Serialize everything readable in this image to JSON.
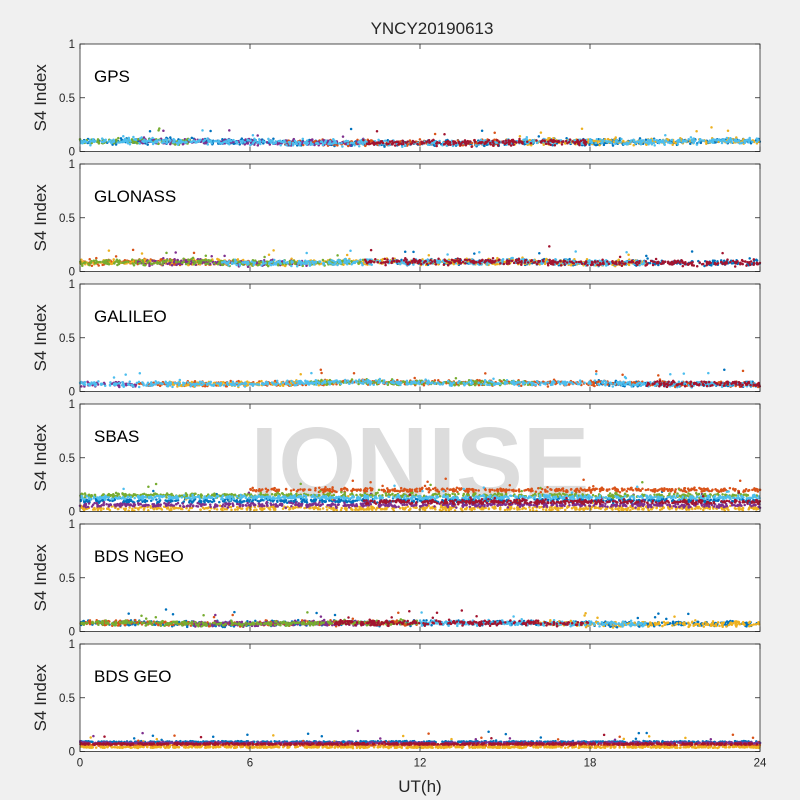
{
  "chart_data": {
    "type": "scatter",
    "title": "YNCY20190613",
    "xlabel": "UT(h)",
    "xlim": [
      0,
      24
    ],
    "xticks": [
      0,
      6,
      12,
      18,
      24
    ],
    "watermark": "IONISE",
    "palette": [
      "#0072BD",
      "#D95319",
      "#EDB120",
      "#7E2F8E",
      "#77AC30",
      "#4DBEEE",
      "#A2142F"
    ],
    "panels": [
      {
        "label": "GPS",
        "ylabel": "S4 Index",
        "ylim": [
          0,
          1
        ],
        "yticks": [
          {
            "v": 0,
            "t": "0"
          },
          {
            "v": 0.5,
            "t": "0.5"
          },
          {
            "v": 1,
            "t": "1"
          }
        ],
        "profile_x": [
          0,
          2,
          4,
          6,
          8,
          10,
          12,
          14,
          16,
          18,
          20,
          22,
          24
        ],
        "profile_y": [
          0.09,
          0.1,
          0.09,
          0.09,
          0.08,
          0.08,
          0.08,
          0.08,
          0.09,
          0.09,
          0.09,
          0.1,
          0.1
        ],
        "spread": 0.04,
        "bands": [
          {
            "color": "#0072BD",
            "from": 0,
            "to": 24
          },
          {
            "color": "#D95319",
            "from": 7,
            "to": 15
          },
          {
            "color": "#EDB120",
            "from": 15,
            "to": 24
          },
          {
            "color": "#7E2F8E",
            "from": 2,
            "to": 10
          },
          {
            "color": "#77AC30",
            "from": 0,
            "to": 4
          },
          {
            "color": "#4DBEEE",
            "from": 0,
            "to": 24
          },
          {
            "color": "#A2142F",
            "from": 10,
            "to": 18
          }
        ]
      },
      {
        "label": "GLONASS",
        "ylabel": "S4 Index",
        "ylim": [
          0,
          1
        ],
        "yticks": [
          {
            "v": 0,
            "t": "0"
          },
          {
            "v": 0.5,
            "t": "0.5"
          },
          {
            "v": 1,
            "t": "1"
          }
        ],
        "profile_x": [
          0,
          2,
          4,
          6,
          8,
          10,
          12,
          14,
          16,
          18,
          20,
          22,
          24
        ],
        "profile_y": [
          0.08,
          0.09,
          0.09,
          0.08,
          0.08,
          0.09,
          0.09,
          0.09,
          0.09,
          0.08,
          0.08,
          0.08,
          0.08
        ],
        "spread": 0.04,
        "bands": [
          {
            "color": "#0072BD",
            "from": 11,
            "to": 24
          },
          {
            "color": "#D95319",
            "from": 0,
            "to": 6
          },
          {
            "color": "#EDB120",
            "from": 0,
            "to": 20
          },
          {
            "color": "#7E2F8E",
            "from": 2,
            "to": 8
          },
          {
            "color": "#77AC30",
            "from": 0,
            "to": 10
          },
          {
            "color": "#4DBEEE",
            "from": 5,
            "to": 20
          },
          {
            "color": "#A2142F",
            "from": 10,
            "to": 24
          }
        ]
      },
      {
        "label": "GALILEO",
        "ylabel": "S4 Index",
        "ylim": [
          0,
          1
        ],
        "yticks": [
          {
            "v": 0,
            "t": "0"
          },
          {
            "v": 0.5,
            "t": "0.5"
          },
          {
            "v": 1,
            "t": "1"
          }
        ],
        "profile_x": [
          0,
          2,
          4,
          6,
          8,
          10,
          12,
          14,
          16,
          18,
          20,
          22,
          24
        ],
        "profile_y": [
          0.07,
          0.07,
          0.07,
          0.07,
          0.08,
          0.09,
          0.08,
          0.08,
          0.08,
          0.08,
          0.07,
          0.07,
          0.07
        ],
        "spread": 0.035,
        "bands": [
          {
            "color": "#0072BD",
            "from": 18,
            "to": 24
          },
          {
            "color": "#D95319",
            "from": 2,
            "to": 24
          },
          {
            "color": "#EDB120",
            "from": 3,
            "to": 9
          },
          {
            "color": "#7E2F8E",
            "from": 0,
            "to": 2
          },
          {
            "color": "#77AC30",
            "from": 8,
            "to": 16
          },
          {
            "color": "#4DBEEE",
            "from": 0,
            "to": 24
          },
          {
            "color": "#A2142F",
            "from": 20,
            "to": 24
          }
        ]
      },
      {
        "label": "SBAS",
        "ylabel": "S4 Index",
        "ylim": [
          0,
          1
        ],
        "yticks": [
          {
            "v": 0,
            "t": "0"
          },
          {
            "v": 0.5,
            "t": "0.5"
          },
          {
            "v": 1,
            "t": "1"
          }
        ],
        "profile_x": [
          0,
          2,
          4,
          6,
          8,
          10,
          12,
          14,
          16,
          18,
          20,
          22,
          24
        ],
        "profile_y": [
          0.13,
          0.13,
          0.13,
          0.14,
          0.14,
          0.15,
          0.14,
          0.14,
          0.14,
          0.13,
          0.13,
          0.13,
          0.13
        ],
        "spread": 0.03,
        "bands": [
          {
            "color": "#0072BD",
            "from": 0,
            "to": 24,
            "base": 0.1
          },
          {
            "color": "#D95319",
            "from": 6,
            "to": 24,
            "base": 0.2
          },
          {
            "color": "#EDB120",
            "from": 0,
            "to": 24,
            "base": 0.03
          },
          {
            "color": "#7E2F8E",
            "from": 0,
            "to": 24,
            "base": 0.06
          },
          {
            "color": "#77AC30",
            "from": 0,
            "to": 24,
            "base": 0.15
          },
          {
            "color": "#4DBEEE",
            "from": 0,
            "to": 24,
            "base": 0.13
          },
          {
            "color": "#A2142F",
            "from": 10,
            "to": 24,
            "base": 0.09
          }
        ]
      },
      {
        "label": "BDS NGEO",
        "ylabel": "S4 Index",
        "ylim": [
          0,
          1
        ],
        "yticks": [
          {
            "v": 0,
            "t": "0"
          },
          {
            "v": 0.5,
            "t": "0.5"
          },
          {
            "v": 1,
            "t": "1"
          }
        ],
        "profile_x": [
          0,
          2,
          4,
          6,
          8,
          10,
          12,
          14,
          16,
          18,
          20,
          22,
          24
        ],
        "profile_y": [
          0.08,
          0.08,
          0.07,
          0.07,
          0.08,
          0.08,
          0.08,
          0.08,
          0.08,
          0.07,
          0.07,
          0.07,
          0.07
        ],
        "spread": 0.035,
        "bands": [
          {
            "color": "#0072BD",
            "from": 0,
            "to": 24
          },
          {
            "color": "#D95319",
            "from": 0,
            "to": 12
          },
          {
            "color": "#EDB120",
            "from": 16,
            "to": 24
          },
          {
            "color": "#7E2F8E",
            "from": 4,
            "to": 10
          },
          {
            "color": "#77AC30",
            "from": 0,
            "to": 12
          },
          {
            "color": "#4DBEEE",
            "from": 12,
            "to": 20
          },
          {
            "color": "#A2142F",
            "from": 9,
            "to": 18
          }
        ]
      },
      {
        "label": "BDS GEO",
        "ylabel": "S4 Index",
        "ylim": [
          0,
          1
        ],
        "yticks": [
          {
            "v": 0,
            "t": "0"
          },
          {
            "v": 0.5,
            "t": "0.5"
          },
          {
            "v": 1,
            "t": "1"
          }
        ],
        "profile_x": [
          0,
          6,
          12,
          18,
          24
        ],
        "profile_y": [
          0.07,
          0.07,
          0.07,
          0.07,
          0.07
        ],
        "spread": 0.01,
        "bands": [
          {
            "color": "#0072BD",
            "from": 0,
            "to": 24,
            "base": 0.09
          },
          {
            "color": "#D95319",
            "from": 0,
            "to": 24,
            "base": 0.06
          },
          {
            "color": "#EDB120",
            "from": 0,
            "to": 24,
            "base": 0.04
          },
          {
            "color": "#7E2F8E",
            "from": 0,
            "to": 24,
            "base": 0.08
          },
          {
            "color": "#A2142F",
            "from": 0,
            "to": 24,
            "base": 0.07
          }
        ]
      }
    ]
  }
}
